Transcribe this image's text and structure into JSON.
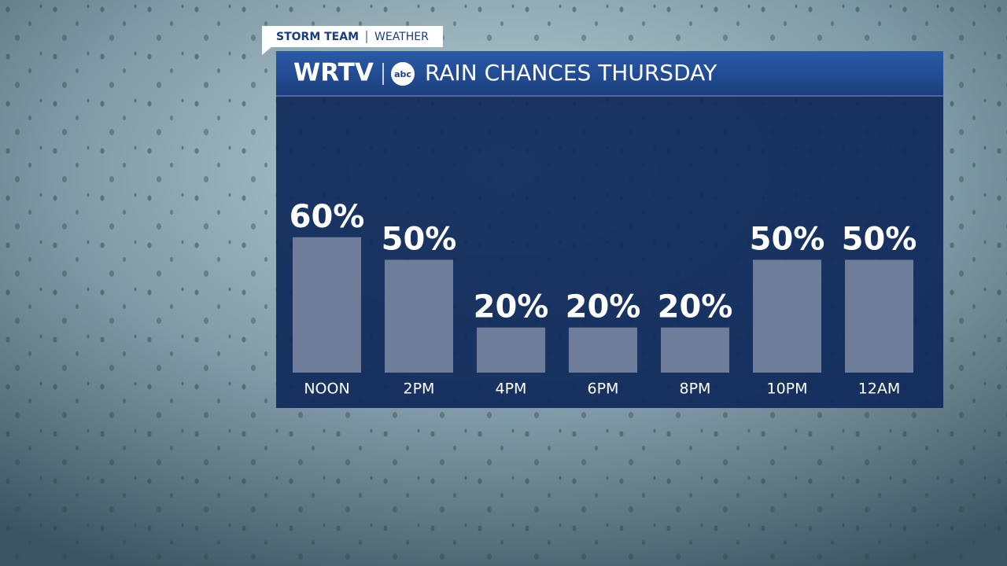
{
  "chart_data": {
    "type": "bar",
    "header_tag": "STORM TEAM",
    "header_section": "WEATHER",
    "station": "WRTV",
    "network": "abc",
    "title": "RAIN CHANCES THURSDAY",
    "categories": [
      "NOON",
      "2PM",
      "4PM",
      "6PM",
      "8PM",
      "10PM",
      "12AM"
    ],
    "values": [
      60,
      50,
      20,
      20,
      20,
      50,
      50
    ],
    "value_labels": [
      "60%",
      "50%",
      "20%",
      "20%",
      "20%",
      "50%",
      "50%"
    ],
    "color": "#6e7d99",
    "ylim": [
      0,
      100
    ]
  }
}
